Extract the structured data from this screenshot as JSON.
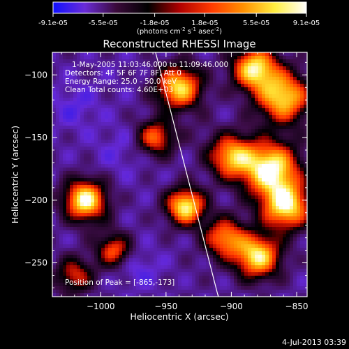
{
  "footer": {
    "timestamp": "4-Jul-2013 03:39"
  },
  "colors": {
    "frame": "#ffffff",
    "background": "#000000",
    "limb": "#ffffff"
  },
  "colorbar": {
    "tick_labels": [
      "-9.1e-05",
      "-5.5e-05",
      "-1.8e-05",
      "1.8e-05",
      "5.5e-05",
      "9.1e-05"
    ],
    "tick_values": [
      -9.1e-05,
      -5.5e-05,
      -1.8e-05,
      1.8e-05,
      5.5e-05,
      9.1e-05
    ],
    "range": [
      -9.1e-05,
      9.1e-05
    ],
    "colors": [
      "#1010ff",
      "#6a2cd8",
      "#3a0a3a",
      "#000000",
      "#b00000",
      "#ff3a00",
      "#ff9000",
      "#ffee40",
      "#ffffff"
    ],
    "units_prefix": "(photons cm",
    "units_exp1": "-2",
    "units_mid": " s",
    "units_exp2": "-1",
    "units_mid2": " asec",
    "units_exp3": "-2",
    "units_suffix": ")"
  },
  "chart_data": {
    "type": "heatmap",
    "title": "Reconstructed RHESSI Image",
    "xlabel": "Heliocentric X (arcsec)",
    "ylabel": "Heliocentric Y (arcsec)",
    "xlim": [
      -1037,
      -842
    ],
    "ylim": [
      -277,
      -82
    ],
    "x_ticks": [
      -1000,
      -950,
      -900,
      -850
    ],
    "x_tick_labels": [
      "−1000",
      "−950",
      "−900",
      "−850"
    ],
    "y_ticks": [
      -100,
      -150,
      -200,
      -250
    ],
    "y_tick_labels": [
      "−100",
      "−150",
      "−200",
      "−250"
    ],
    "annotations": [
      "1-May-2005 11:03:46.000 to 11:09:46.000",
      "Detectors: 4F 5F 6F 7F 8F, Att 0",
      "Energy Range: 25.0 - 50.0 keV",
      "Clean     Total counts: 4.60E+03"
    ],
    "peak_label": "Position of Peak = [-865,-173]",
    "peak": {
      "x": -865,
      "y": -173
    },
    "limb_line": [
      [
        -958,
        -82
      ],
      [
        -910,
        -277
      ]
    ],
    "sources": [
      {
        "x": -870,
        "y": -175,
        "v": 9.1e-05,
        "s": 15
      },
      {
        "x": -858,
        "y": -205,
        "v": 8e-05,
        "s": 13
      },
      {
        "x": -860,
        "y": -118,
        "v": 7.5e-05,
        "s": 14
      },
      {
        "x": -882,
        "y": -95,
        "v": 8e-05,
        "s": 12
      },
      {
        "x": -880,
        "y": -245,
        "v": 8e-05,
        "s": 12
      },
      {
        "x": -900,
        "y": -165,
        "v": 6e-05,
        "s": 12
      },
      {
        "x": -905,
        "y": -230,
        "v": 5e-05,
        "s": 11
      },
      {
        "x": -935,
        "y": -205,
        "v": 8.5e-05,
        "s": 10
      },
      {
        "x": -940,
        "y": -110,
        "v": 7.5e-05,
        "s": 12
      },
      {
        "x": -958,
        "y": -150,
        "v": 4e-05,
        "s": 10
      },
      {
        "x": -1012,
        "y": -200,
        "v": 9e-05,
        "s": 11
      },
      {
        "x": -990,
        "y": -240,
        "v": 3.5e-05,
        "s": 9
      },
      {
        "x": -1020,
        "y": -260,
        "v": 2.5e-05,
        "s": 10
      },
      {
        "x": -1020,
        "y": -125,
        "v": -6e-05,
        "s": 13
      },
      {
        "x": -985,
        "y": -160,
        "v": -5.5e-05,
        "s": 14
      },
      {
        "x": -970,
        "y": -255,
        "v": -6e-05,
        "s": 11
      },
      {
        "x": -985,
        "y": -100,
        "v": -4.5e-05,
        "s": 12
      },
      {
        "x": -925,
        "y": -145,
        "v": -3.5e-05,
        "s": 10
      },
      {
        "x": -930,
        "y": -265,
        "v": -4e-05,
        "s": 11
      },
      {
        "x": -1000,
        "y": -220,
        "v": -3.5e-05,
        "s": 10
      }
    ]
  }
}
